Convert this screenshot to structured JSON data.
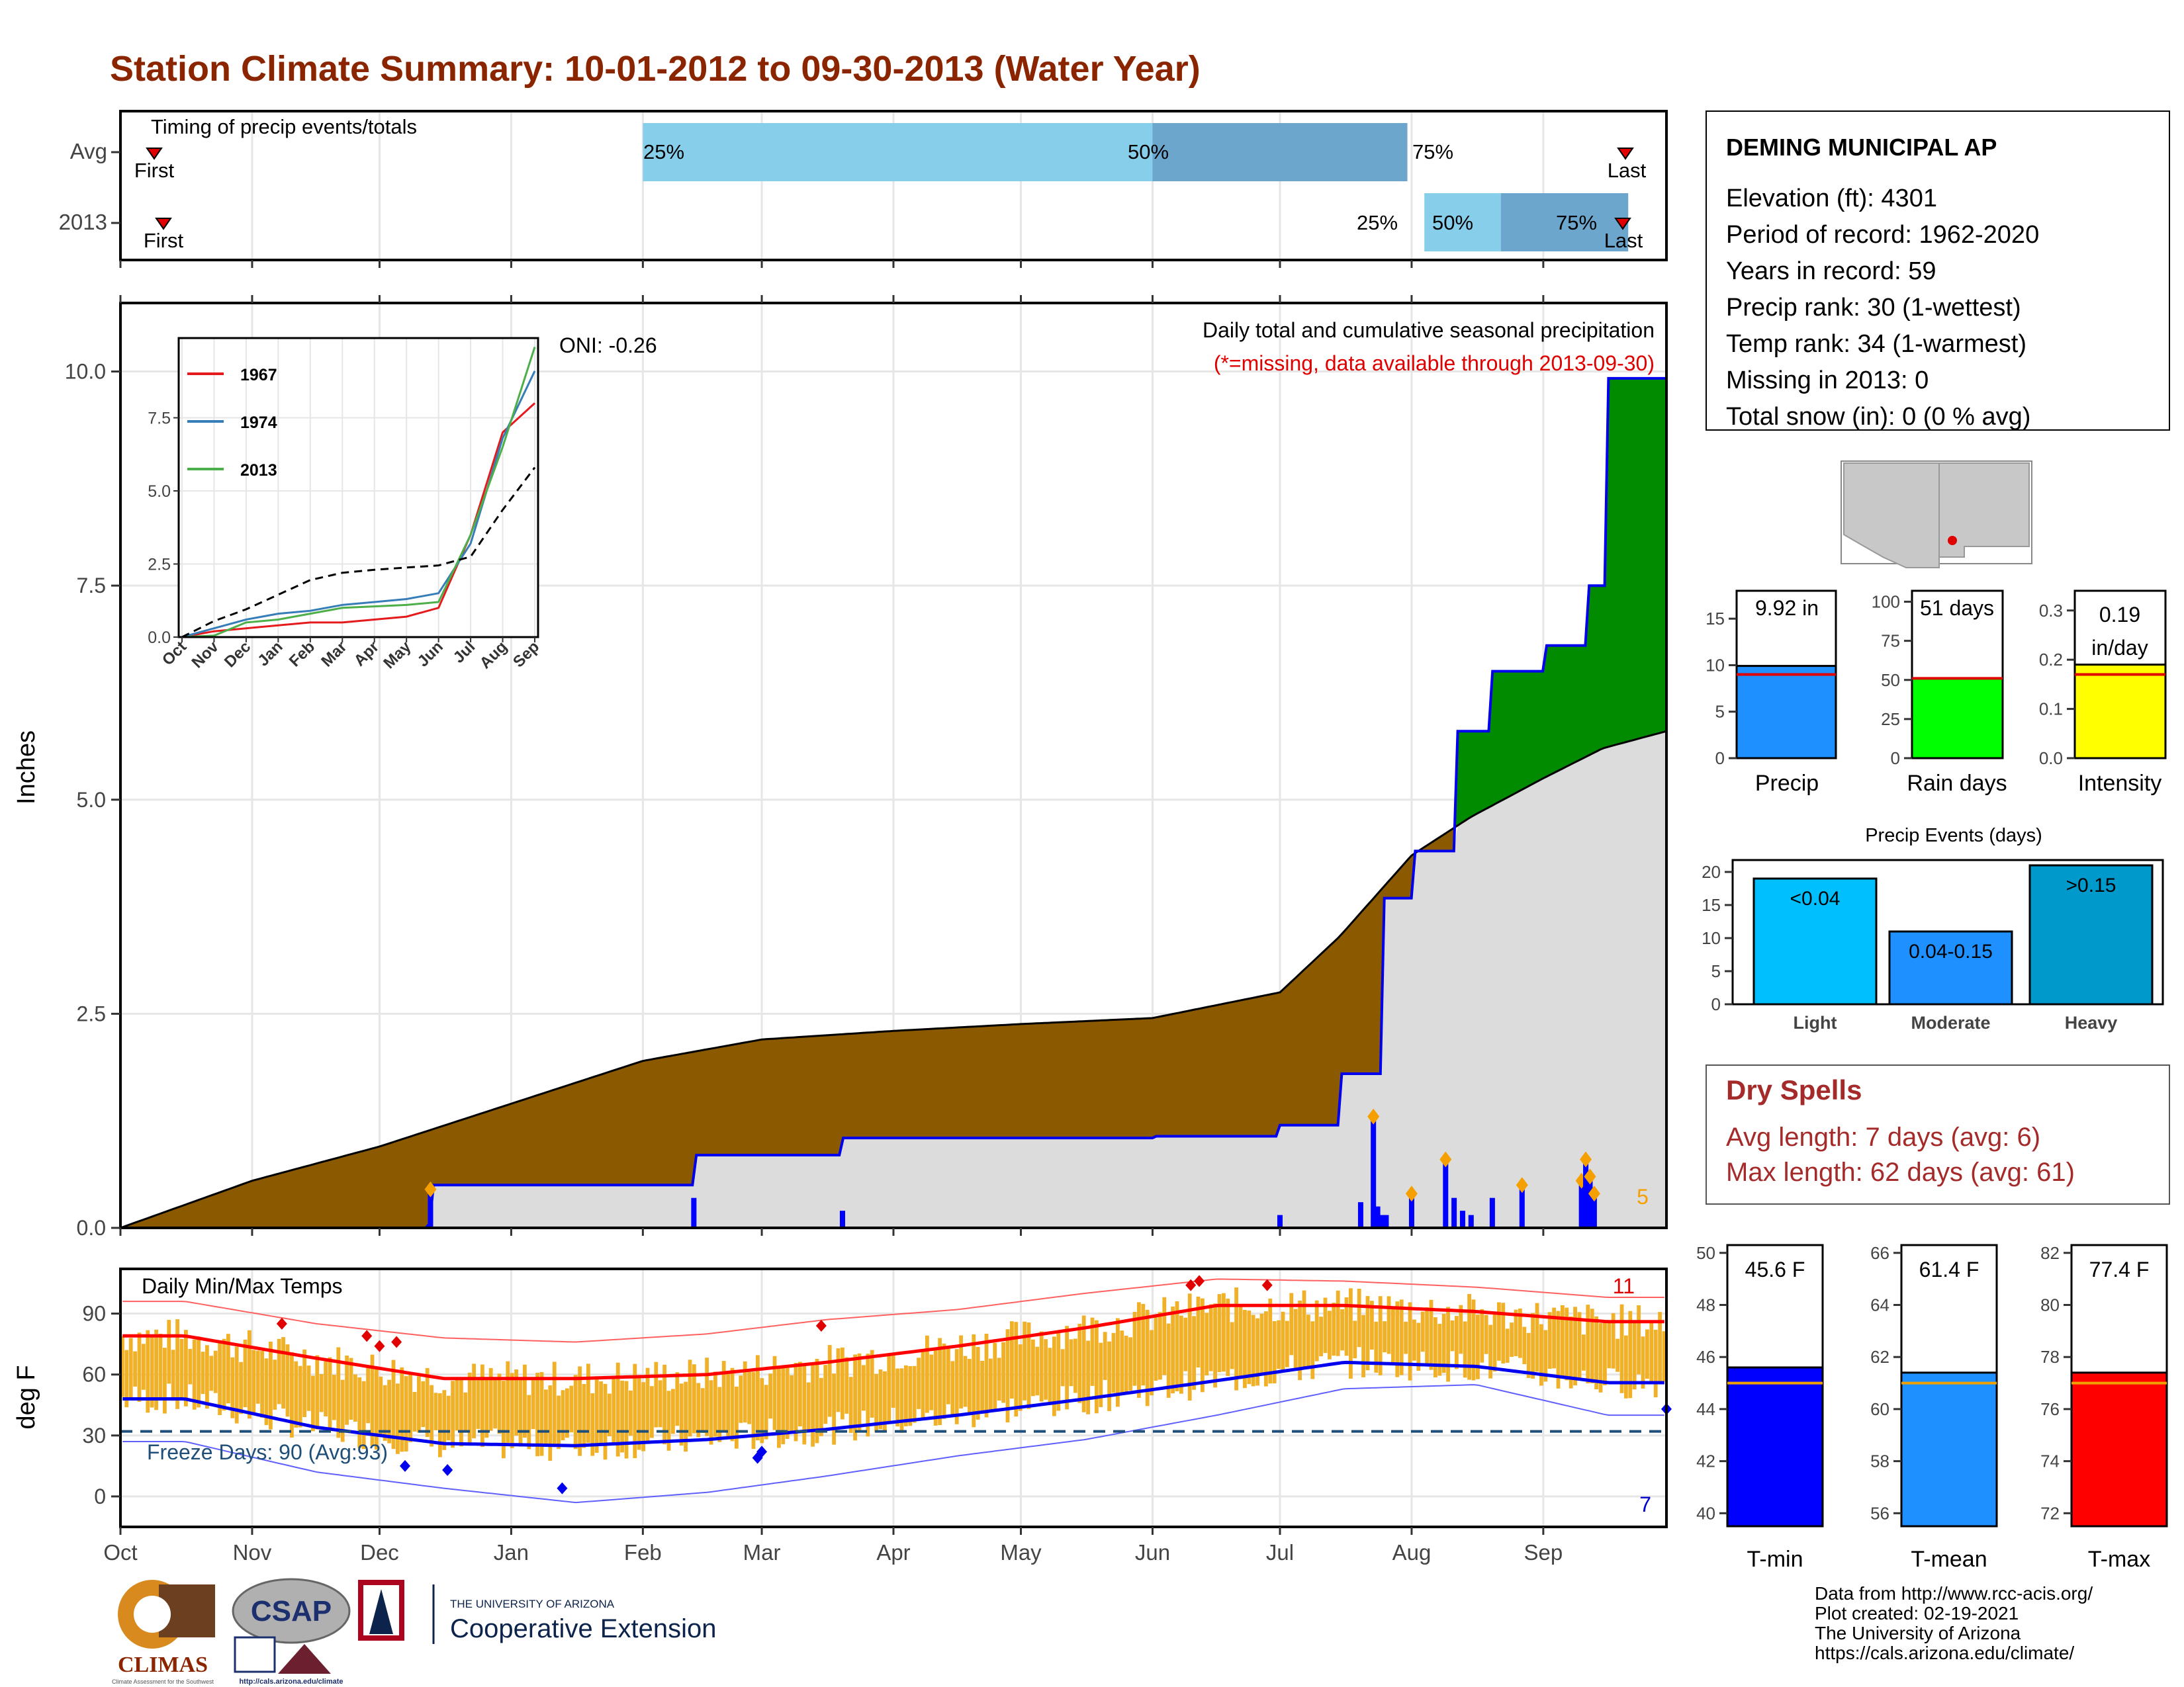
{
  "title": "Station Climate Summary: 10-01-2012 to 09-30-2013 (Water Year)",
  "colors": {
    "title": "#8b2500",
    "precip_light_blue": "#87ceeb",
    "precip_mid_blue": "#6ca6cd",
    "deficit_brown": "#8b5a00",
    "surplus_green": "#008b00",
    "normal_fill": "#dcdcdc",
    "daily_bar_blue": "#0000ff",
    "temp_bar_orange": "#f0b027",
    "normal_max_red": "#ff0000",
    "normal_min_blue": "#0000ff",
    "dry_spell_text": "#a52a2a",
    "freeze_line": "#1f4e79"
  },
  "timing_panel": {
    "label": "Timing of precip events/totals",
    "rows": [
      "Avg",
      "2013"
    ],
    "avg": {
      "first_label": "First",
      "last_label": "Last",
      "p25": "25%",
      "p50": "50%",
      "p75": "75%"
    },
    "y2013": {
      "first_label": "First",
      "last_label": "Last",
      "p25": "25%",
      "p50": "50%",
      "p75": "75%"
    }
  },
  "precip_panel": {
    "ylabel": "Inches",
    "oni": "ONI: -0.26",
    "subtitle": "Daily total and cumulative seasonal precipitation",
    "missing_note": "(*=missing, data available through 2013-09-30)",
    "extreme_count": "5",
    "y_ticks": [
      "0.0",
      "2.5",
      "5.0",
      "7.5",
      "10.0"
    ]
  },
  "inset": {
    "legend": [
      {
        "name": "1967",
        "color": "#e41a1c"
      },
      {
        "name": "1974",
        "color": "#377eb8"
      },
      {
        "name": "2013",
        "color": "#4daf4a"
      }
    ],
    "y_ticks": [
      "0.0",
      "2.5",
      "5.0",
      "7.5"
    ],
    "x_ticks": [
      "Oct",
      "Nov",
      "Dec",
      "Jan",
      "Feb",
      "Mar",
      "Apr",
      "May",
      "Jun",
      "Jul",
      "Aug",
      "Sep"
    ]
  },
  "temp_panel": {
    "ylabel": "deg F",
    "label": "Daily Min/Max Temps",
    "freeze": "Freeze Days: 90 (Avg:93)",
    "record_high_count": "11",
    "record_low_count": "7",
    "y_ticks": [
      "0",
      "30",
      "60",
      "90"
    ]
  },
  "months": [
    "Oct",
    "Nov",
    "Dec",
    "Jan",
    "Feb",
    "Mar",
    "Apr",
    "May",
    "Jun",
    "Jul",
    "Aug",
    "Sep"
  ],
  "station": {
    "name": "DEMING MUNICIPAL AP",
    "lines": [
      "Elevation (ft): 4301",
      "Period of record: 1962-2020",
      "Years in record: 59",
      "Precip rank: 30 (1-wettest)",
      "Temp rank: 34 (1-warmest)",
      "Missing in 2013: 0",
      "Total snow (in): 0 (0 % avg)"
    ]
  },
  "summary_bars": {
    "precip": {
      "label": "Precip",
      "value_label": "9.92 in",
      "ticks": [
        "0",
        "5",
        "10",
        "15"
      ]
    },
    "rain_days": {
      "label": "Rain days",
      "value_label": "51 days",
      "ticks": [
        "0",
        "25",
        "50",
        "75",
        "100"
      ]
    },
    "intensity": {
      "label": "Intensity",
      "value_label_1": "0.19",
      "value_label_2": "in/day",
      "ticks": [
        "0.0",
        "0.1",
        "0.2",
        "0.3"
      ]
    }
  },
  "precip_events": {
    "title": "Precip Events (days)",
    "ticks": [
      "0",
      "5",
      "10",
      "15",
      "20"
    ],
    "bars": [
      {
        "category": "Light",
        "label": "<0.04",
        "value": 19
      },
      {
        "category": "Moderate",
        "label": "0.04-0.15",
        "value": 11
      },
      {
        "category": "Heavy",
        "label": ">0.15",
        "value": 21
      }
    ]
  },
  "dry_spells": {
    "title": "Dry Spells",
    "avg_length": "Avg length: 7 days (avg: 6)",
    "max_length": "Max length: 62 days (avg: 61)"
  },
  "temp_bars": {
    "tmin": {
      "label": "T-min",
      "value_label": "45.6 F",
      "ticks": [
        "40",
        "42",
        "44",
        "46",
        "48",
        "50"
      ]
    },
    "tmean": {
      "label": "T-mean",
      "value_label": "61.4 F",
      "ticks": [
        "56",
        "58",
        "60",
        "62",
        "64",
        "66"
      ]
    },
    "tmax": {
      "label": "T-max",
      "value_label": "77.4 F",
      "ticks": [
        "72",
        "74",
        "76",
        "78",
        "80",
        "82"
      ]
    }
  },
  "credits": [
    "Data from http://www.rcc-acis.org/",
    "Plot created: 02-19-2021",
    "The University of Arizona",
    "https://cals.arizona.edu/climate/"
  ],
  "logos": {
    "climas": "CLIMAS",
    "climas_sub": "Climate Assessment for the Southwest",
    "csap": "CSAP",
    "csap_url": "http://cals.arizona.edu/climate",
    "ua_small": "THE UNIVERSITY OF ARIZONA",
    "coop_ext": "Cooperative Extension"
  },
  "chart_data": [
    {
      "type": "bar",
      "title": "Timing of precip events/totals",
      "categories": [
        "Avg",
        "2013"
      ],
      "series": [
        {
          "name": "Avg",
          "p25_date": "2013-02-01",
          "p50_date": "2013-06-01",
          "p75_date": "2013-07-31",
          "first_date": "2012-10-10",
          "last_date": "2013-09-23"
        },
        {
          "name": "2013",
          "p25_date": "2013-08-04",
          "p50_date": "2013-08-22",
          "p75_date": "2013-09-21",
          "first_date": "2012-10-12",
          "last_date": "2013-09-23"
        }
      ]
    },
    {
      "type": "area",
      "title": "Daily total and cumulative seasonal precipitation",
      "ylabel": "Inches",
      "ylim": [
        0,
        10.8
      ],
      "x_range": [
        "2012-10-01",
        "2013-09-30"
      ],
      "series": [
        {
          "name": "normal cumulative",
          "x": [
            "2012-10-01",
            "2012-11-01",
            "2012-12-01",
            "2013-01-01",
            "2013-02-01",
            "2013-03-01",
            "2013-04-01",
            "2013-05-01",
            "2013-06-01",
            "2013-07-01",
            "2013-07-15",
            "2013-08-01",
            "2013-08-15",
            "2013-09-01",
            "2013-09-15",
            "2013-09-30"
          ],
          "values": [
            0,
            0.55,
            0.95,
            1.45,
            1.95,
            2.2,
            2.3,
            2.38,
            2.45,
            2.75,
            3.4,
            4.35,
            4.8,
            5.25,
            5.6,
            5.8
          ]
        },
        {
          "name": "2013 cumulative",
          "x": [
            "2012-10-01",
            "2012-12-12",
            "2012-12-13",
            "2013-02-13",
            "2013-03-20",
            "2013-06-01",
            "2013-07-01",
            "2013-07-15",
            "2013-07-25",
            "2013-08-01",
            "2013-08-11",
            "2013-08-20",
            "2013-09-01",
            "2013-09-11",
            "2013-09-16",
            "2013-09-30"
          ],
          "values": [
            0,
            0.05,
            0.5,
            0.85,
            1.05,
            1.07,
            1.2,
            1.8,
            3.85,
            4.4,
            5.8,
            6.5,
            6.8,
            7.5,
            9.92,
            9.92
          ]
        }
      ],
      "daily_totals": {
        "x": [
          "2012-12-13",
          "2013-02-13",
          "2013-03-20",
          "2013-07-01",
          "2013-07-20",
          "2013-07-23",
          "2013-07-24",
          "2013-07-25",
          "2013-07-26",
          "2013-08-01",
          "2013-08-09",
          "2013-08-11",
          "2013-08-13",
          "2013-08-15",
          "2013-08-20",
          "2013-08-27",
          "2013-09-10",
          "2013-09-11",
          "2013-09-12",
          "2013-09-13"
        ],
        "values": [
          0.45,
          0.35,
          0.2,
          0.15,
          0.3,
          1.3,
          0.25,
          0.15,
          0.15,
          0.4,
          0.8,
          0.35,
          0.2,
          0.15,
          0.35,
          0.5,
          0.55,
          0.8,
          0.6,
          0.4
        ]
      }
    },
    {
      "type": "line",
      "title": "Inset cumulative precipitation comparison",
      "ylim": [
        0,
        10.0
      ],
      "categories": [
        "Oct",
        "Nov",
        "Dec",
        "Jan",
        "Feb",
        "Mar",
        "Apr",
        "May",
        "Jun",
        "Jul",
        "Aug",
        "Sep"
      ],
      "series": [
        {
          "name": "1967",
          "values": [
            0,
            0.2,
            0.3,
            0.4,
            0.5,
            0.5,
            0.6,
            0.7,
            1.0,
            3.5,
            7.0,
            8.0
          ]
        },
        {
          "name": "1974",
          "values": [
            0,
            0.3,
            0.6,
            0.8,
            0.9,
            1.1,
            1.2,
            1.3,
            1.5,
            3.2,
            6.8,
            9.1
          ]
        },
        {
          "name": "2013",
          "values": [
            0,
            0.05,
            0.5,
            0.6,
            0.8,
            1.0,
            1.05,
            1.1,
            1.2,
            3.5,
            6.5,
            9.92
          ]
        },
        {
          "name": "average",
          "values": [
            0,
            0.55,
            0.95,
            1.45,
            1.95,
            2.2,
            2.3,
            2.38,
            2.45,
            2.75,
            4.35,
            5.8
          ]
        }
      ]
    },
    {
      "type": "bar",
      "title": "Daily Min/Max Temps",
      "ylabel": "deg F",
      "ylim": [
        -15,
        112
      ],
      "categories": [
        "Oct",
        "Nov",
        "Dec",
        "Jan",
        "Feb",
        "Mar",
        "Apr",
        "May",
        "Jun",
        "Jul",
        "Aug",
        "Sep"
      ],
      "series": [
        {
          "name": "normal max",
          "values": [
            79,
            68,
            58,
            58,
            60,
            66,
            74,
            83,
            94,
            94,
            91,
            86
          ]
        },
        {
          "name": "normal min",
          "values": [
            48,
            34,
            26,
            25,
            28,
            33,
            40,
            48,
            57,
            66,
            64,
            56
          ]
        },
        {
          "name": "record max (upper)",
          "values": [
            96,
            85,
            78,
            76,
            80,
            87,
            92,
            100,
            107,
            106,
            103,
            98
          ]
        },
        {
          "name": "record min (lower)",
          "values": [
            27,
            12,
            4,
            -3,
            2,
            10,
            20,
            28,
            40,
            53,
            55,
            40
          ]
        }
      ],
      "freeze_threshold": 32
    },
    {
      "type": "bar",
      "title": "Precip",
      "categories": [
        "Precip"
      ],
      "values": [
        9.92
      ],
      "average": 9.0,
      "ylim": [
        0,
        18
      ]
    },
    {
      "type": "bar",
      "title": "Rain days",
      "categories": [
        "Rain days"
      ],
      "values": [
        51
      ],
      "average": 51,
      "ylim": [
        0,
        107
      ]
    },
    {
      "type": "bar",
      "title": "Intensity",
      "categories": [
        "Intensity"
      ],
      "values": [
        0.19
      ],
      "average": 0.17,
      "ylim": [
        0,
        0.34
      ]
    },
    {
      "type": "bar",
      "title": "Precip Events (days)",
      "categories": [
        "Light",
        "Moderate",
        "Heavy"
      ],
      "values": [
        19,
        11,
        21
      ],
      "ylim": [
        0,
        21.8
      ]
    },
    {
      "type": "bar",
      "title": "T-min",
      "categories": [
        "T-min"
      ],
      "values": [
        45.6
      ],
      "average": 45.0,
      "ylim": [
        39.5,
        50.3
      ]
    },
    {
      "type": "bar",
      "title": "T-mean",
      "categories": [
        "T-mean"
      ],
      "values": [
        61.4
      ],
      "average": 61.0,
      "ylim": [
        55.5,
        66.3
      ]
    },
    {
      "type": "bar",
      "title": "T-max",
      "categories": [
        "T-max"
      ],
      "values": [
        77.4
      ],
      "average": 77.0,
      "ylim": [
        71.5,
        82.3
      ]
    }
  ]
}
